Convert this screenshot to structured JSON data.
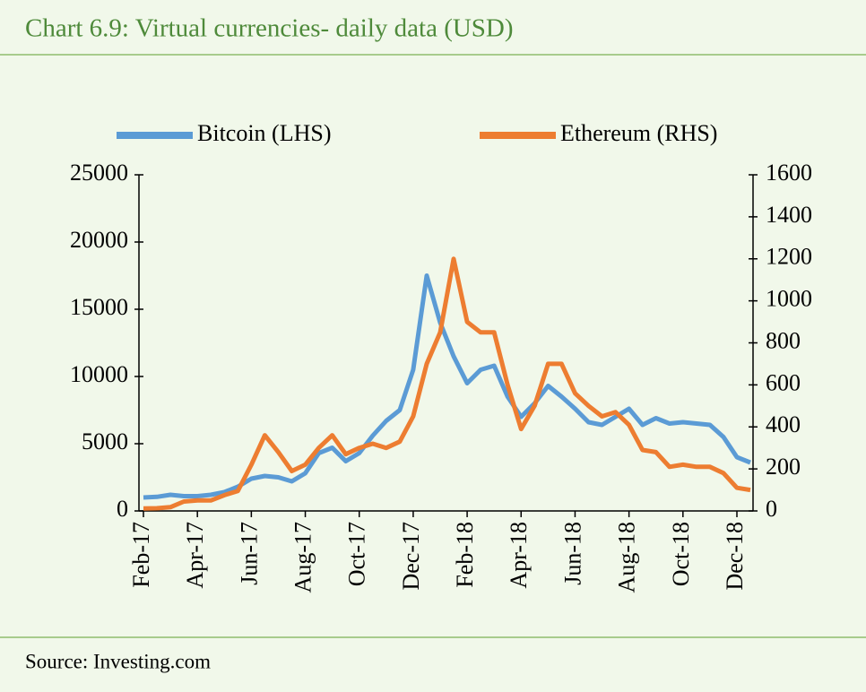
{
  "chart_data": {
    "type": "line",
    "title": "Chart 6.9: Virtual currencies- daily data (USD)",
    "source": "Source:  Investing.com",
    "categories": [
      "Feb-17",
      null,
      null,
      null,
      "Apr-17",
      null,
      null,
      null,
      "Jun-17",
      null,
      null,
      null,
      "Aug-17",
      null,
      null,
      null,
      "Oct-17",
      null,
      null,
      null,
      "Dec-17",
      null,
      null,
      null,
      "Feb-18",
      null,
      null,
      null,
      "Apr-18",
      null,
      null,
      null,
      "Jun-18",
      null,
      null,
      null,
      "Aug-18",
      null,
      null,
      null,
      "Oct-18",
      null,
      null,
      null,
      "Dec-18",
      null
    ],
    "series": [
      {
        "name": "Bitcoin  (LHS)",
        "color": "#5b9bd5",
        "axis": "y",
        "values": [
          1000,
          1050,
          1200,
          1100,
          1100,
          1200,
          1400,
          1800,
          2400,
          2600,
          2500,
          2200,
          2800,
          4300,
          4700,
          3700,
          4300,
          5600,
          6700,
          7500,
          10500,
          17500,
          14000,
          11500,
          9500,
          10500,
          10800,
          8500,
          7000,
          8000,
          9300,
          8500,
          7600,
          6600,
          6400,
          7000,
          7600,
          6400,
          6900,
          6500,
          6600,
          6500,
          6400,
          5500,
          4000,
          3600
        ]
      },
      {
        "name": "Ethereum (RHS)",
        "color": "#ed7d31",
        "axis": "y2",
        "values": [
          12,
          13,
          18,
          45,
          50,
          50,
          75,
          95,
          220,
          360,
          280,
          190,
          220,
          300,
          360,
          270,
          300,
          320,
          300,
          330,
          450,
          700,
          850,
          1200,
          900,
          850,
          850,
          600,
          390,
          500,
          700,
          700,
          560,
          500,
          450,
          470,
          410,
          290,
          280,
          210,
          220,
          210,
          210,
          180,
          110,
          100
        ]
      }
    ],
    "ylim": [
      0,
      25000
    ],
    "yticks": [
      0,
      5000,
      10000,
      15000,
      20000,
      25000
    ],
    "y2lim": [
      0,
      1600
    ],
    "y2ticks": [
      0,
      200,
      400,
      600,
      800,
      1000,
      1200,
      1400,
      1600
    ],
    "legend": "top"
  }
}
